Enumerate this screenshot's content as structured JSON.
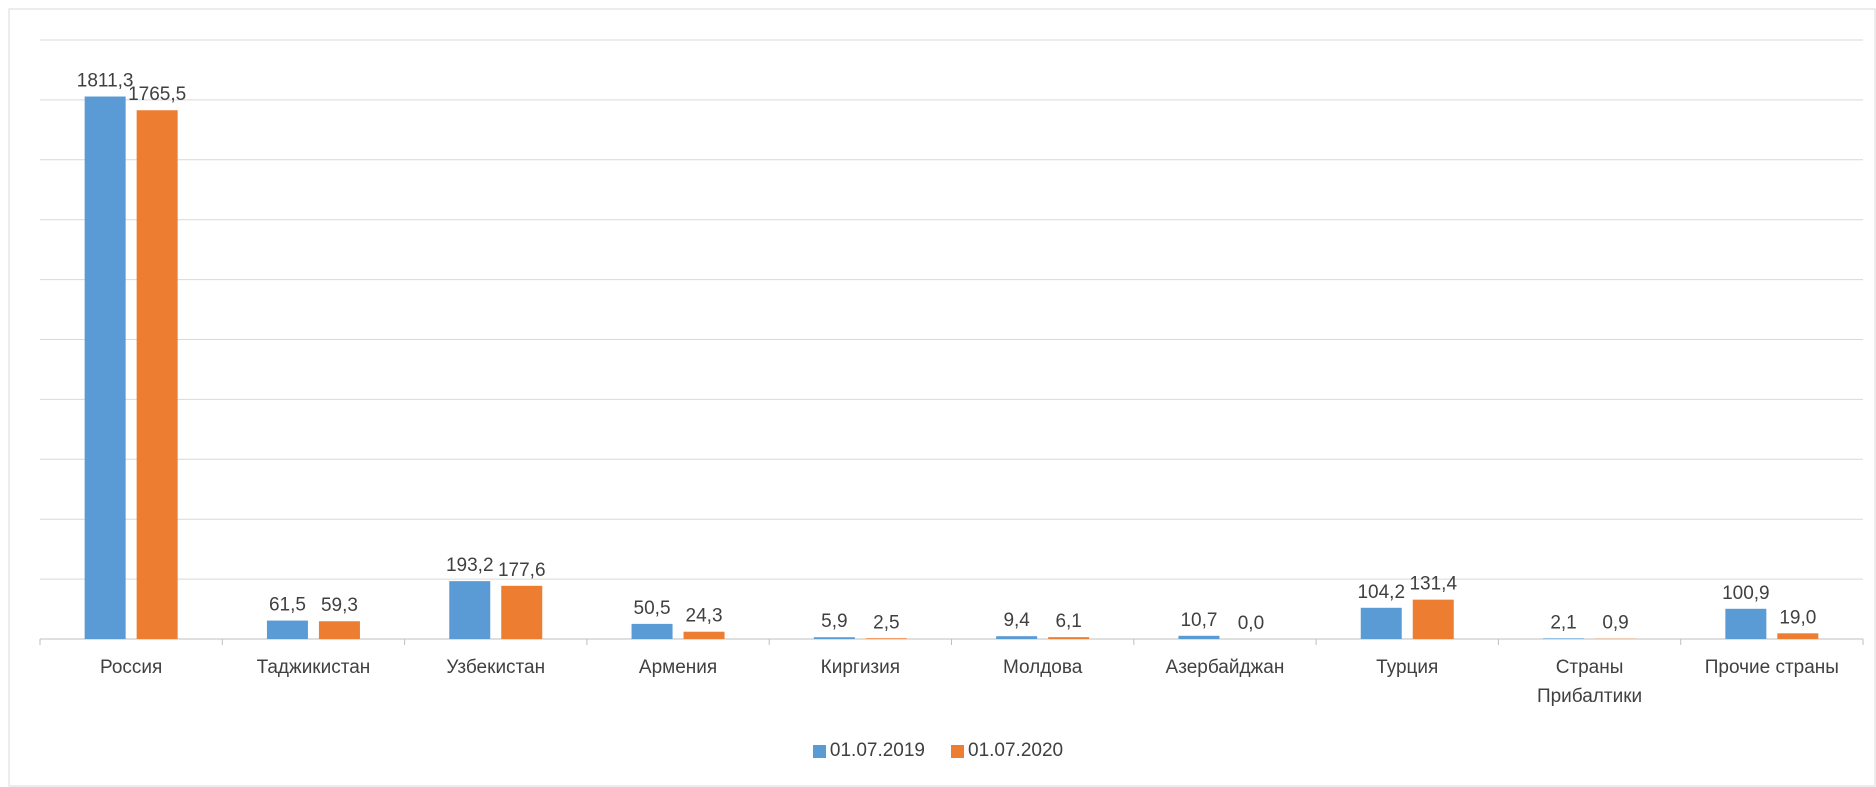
{
  "chart_data": {
    "type": "bar",
    "categories": [
      "Россия",
      "Таджикистан",
      "Узбекистан",
      "Армения",
      "Киргизия",
      "Молдова",
      "Азербайджан",
      "Турция",
      "Страны Прибалтики",
      "Прочие страны"
    ],
    "series": [
      {
        "name": "01.07.2019",
        "color": "#5b9bd5",
        "values": [
          1811.3,
          61.5,
          193.2,
          50.5,
          5.9,
          9.4,
          10.7,
          104.2,
          2.1,
          100.9
        ],
        "value_labels": [
          "1811,3",
          "61,5",
          "193,2",
          "50,5",
          "5,9",
          "9,4",
          "10,7",
          "104,2",
          "2,1",
          "100,9"
        ]
      },
      {
        "name": "01.07.2020",
        "color": "#ed7d31",
        "values": [
          1765.5,
          59.3,
          177.6,
          24.3,
          2.5,
          6.1,
          0.0,
          131.4,
          0.9,
          19.0
        ],
        "value_labels": [
          "1765,5",
          "59,3",
          "177,6",
          "24,3",
          "2,5",
          "6,1",
          "0,0",
          "131,4",
          "0,9",
          "19,0"
        ]
      }
    ],
    "ylim": [
      0,
      2000
    ],
    "yticks": [
      0,
      200,
      400,
      600,
      800,
      1000,
      1200,
      1400,
      1600,
      1800,
      2000
    ],
    "grid": true,
    "legend": "bottom"
  }
}
